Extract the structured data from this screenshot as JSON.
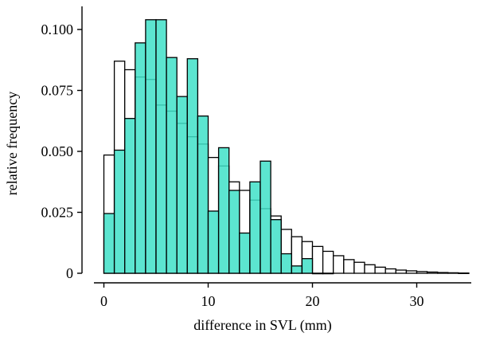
{
  "chart_data": {
    "type": "bar",
    "xlabel": "difference in SVL (mm)",
    "ylabel": "relative frequency",
    "xlim": [
      -2,
      36
    ],
    "ylim": [
      0,
      0.105
    ],
    "grid": false,
    "legend": "none",
    "bin_width": 1,
    "xticks": [
      {
        "value": 0,
        "label": "0"
      },
      {
        "value": 10,
        "label": "10"
      },
      {
        "value": 20,
        "label": "20"
      },
      {
        "value": 30,
        "label": "30"
      }
    ],
    "yticks": [
      {
        "value": 0,
        "label": "0"
      },
      {
        "value": 0.025,
        "label": "0.025"
      },
      {
        "value": 0.05,
        "label": "0.050"
      },
      {
        "value": 0.075,
        "label": "0.075"
      },
      {
        "value": 0.1,
        "label": "0.100"
      }
    ],
    "series": [
      {
        "fill": "#ffffff",
        "stroke": "#000000",
        "bin_starts": [
          0,
          1,
          2,
          3,
          4,
          5,
          6,
          7,
          8,
          9,
          10,
          11,
          12,
          13,
          14,
          15,
          16,
          17,
          18,
          19,
          20,
          21,
          22,
          23,
          24,
          25,
          26,
          27,
          28,
          29,
          30,
          31,
          32,
          33,
          34
        ],
        "values": [
          0.0485,
          0.087,
          0.0835,
          0.0805,
          0.0795,
          0.069,
          0.0665,
          0.0615,
          0.056,
          0.053,
          0.0475,
          0.044,
          0.0375,
          0.034,
          0.03,
          0.0265,
          0.0235,
          0.018,
          0.015,
          0.013,
          0.011,
          0.009,
          0.0072,
          0.0056,
          0.0045,
          0.0035,
          0.0025,
          0.0018,
          0.0013,
          0.001,
          0.0007,
          0.0005,
          0.0003,
          0.0002,
          0.0001
        ]
      },
      {
        "fill": "#40e0c8",
        "stroke": "#000000",
        "opacity": 0.85,
        "bin_starts": [
          0,
          1,
          2,
          3,
          4,
          5,
          6,
          7,
          8,
          9,
          10,
          11,
          12,
          13,
          14,
          15,
          16,
          17,
          18,
          19,
          20,
          21
        ],
        "values": [
          0.0245,
          0.0505,
          0.0635,
          0.0945,
          0.104,
          0.104,
          0.0885,
          0.0725,
          0.088,
          0.0645,
          0.0255,
          0.0515,
          0.034,
          0.0165,
          0.0375,
          0.046,
          0.022,
          0.008,
          0.003,
          0.006,
          0.0,
          0.0
        ]
      }
    ]
  }
}
